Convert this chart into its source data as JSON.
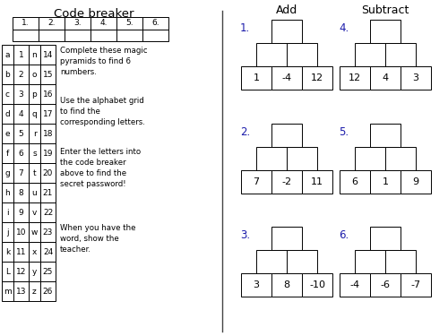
{
  "title": "Code breaker",
  "code_breaker_cols": [
    "1.",
    "2.",
    "3.",
    "4.",
    "5.",
    "6."
  ],
  "alphabet_letters": [
    "a",
    "b",
    "c",
    "d",
    "e",
    "f",
    "g",
    "h",
    "i",
    "j",
    "k",
    "L",
    "m"
  ],
  "alphabet_numbers_left": [
    1,
    2,
    3,
    4,
    5,
    6,
    7,
    8,
    9,
    10,
    11,
    12,
    13
  ],
  "alphabet_letters_right": [
    "n",
    "o",
    "p",
    "q",
    "r",
    "s",
    "t",
    "u",
    "v",
    "w",
    "x",
    "y",
    "z"
  ],
  "alphabet_numbers_right": [
    14,
    15,
    16,
    17,
    18,
    19,
    20,
    21,
    22,
    23,
    24,
    25,
    26
  ],
  "instructions": [
    "Complete these magic\npyramids to find 6\nnumbers.",
    "Use the alphabet grid\nto find the\ncorresponding letters.",
    "Enter the letters into\nthe code breaker\nabove to find the\nsecret password!",
    "When you have the\nword, show the\nteacher."
  ],
  "add_label": "Add",
  "subtract_label": "Subtract",
  "pyramids": [
    {
      "number": "1.",
      "base": [
        1,
        -4,
        12
      ],
      "color": "#1a1aaa"
    },
    {
      "number": "2.",
      "base": [
        7,
        -2,
        11
      ],
      "color": "#1a1aaa"
    },
    {
      "number": "3.",
      "base": [
        3,
        8,
        -10
      ],
      "color": "#1a1aaa"
    },
    {
      "number": "4.",
      "base": [
        12,
        4,
        3
      ],
      "color": "#1a1aaa"
    },
    {
      "number": "5.",
      "base": [
        6,
        1,
        9
      ],
      "color": "#1a1aaa"
    },
    {
      "number": "6.",
      "base": [
        -4,
        -6,
        -7
      ],
      "color": "#1a1aaa"
    }
  ],
  "bg_color": "#ffffff",
  "line_color": "#000000",
  "divider_color": "#444444"
}
